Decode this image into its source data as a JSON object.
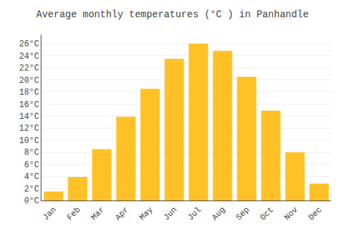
{
  "chart_data": {
    "type": "bar",
    "title": "Average monthly temperatures (°C ) in Panhandle",
    "categories": [
      "Jan",
      "Feb",
      "Mar",
      "Apr",
      "May",
      "Jun",
      "Jul",
      "Aug",
      "Sep",
      "Oct",
      "Nov",
      "Dec"
    ],
    "values": [
      1.5,
      3.9,
      8.5,
      13.9,
      18.5,
      23.5,
      26.0,
      24.8,
      20.5,
      14.9,
      8.0,
      2.8
    ],
    "color": "#FFC125",
    "ylim": [
      0,
      27.5
    ],
    "yticks": [
      {
        "value": 0,
        "label": "0°C"
      },
      {
        "value": 2,
        "label": "2°C"
      },
      {
        "value": 4,
        "label": "4°C"
      },
      {
        "value": 6,
        "label": "6°C"
      },
      {
        "value": 8,
        "label": "8°C"
      },
      {
        "value": 10,
        "label": "10°C"
      },
      {
        "value": 12,
        "label": "12°C"
      },
      {
        "value": 14,
        "label": "14°C"
      },
      {
        "value": 16,
        "label": "16°C"
      },
      {
        "value": 18,
        "label": "18°C"
      },
      {
        "value": 20,
        "label": "20°C"
      },
      {
        "value": 22,
        "label": "22°C"
      },
      {
        "value": 24,
        "label": "24°C"
      },
      {
        "value": 26,
        "label": "26°C"
      }
    ],
    "grid": true
  }
}
